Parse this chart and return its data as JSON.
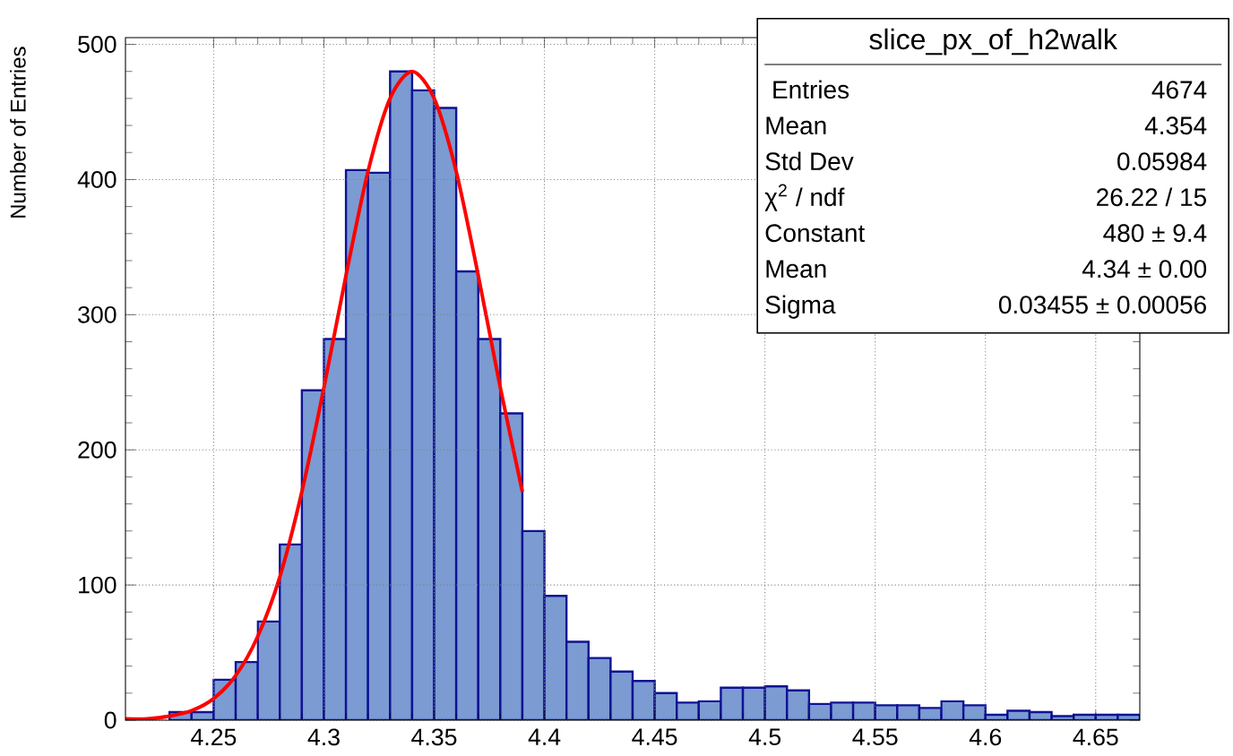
{
  "chart_data": {
    "type": "histogram",
    "ylabel": "Number of Entries",
    "bins": [
      4.21,
      4.22,
      4.23,
      4.24,
      4.25,
      4.26,
      4.27,
      4.28,
      4.29,
      4.3,
      4.31,
      4.32,
      4.33,
      4.34,
      4.35,
      4.36,
      4.37,
      4.38,
      4.39,
      4.4,
      4.41,
      4.42,
      4.43,
      4.44,
      4.45,
      4.46,
      4.47,
      4.48,
      4.49,
      4.5,
      4.51,
      4.52,
      4.53,
      4.54,
      4.55,
      4.56,
      4.57,
      4.58,
      4.59,
      4.6,
      4.61,
      4.62,
      4.63,
      4.64,
      4.65,
      4.66,
      4.67
    ],
    "values": [
      0,
      0,
      6,
      6,
      30,
      43,
      73,
      130,
      244,
      282,
      407,
      405,
      480,
      466,
      453,
      332,
      282,
      227,
      140,
      92,
      58,
      46,
      36,
      29,
      20,
      13,
      14,
      24,
      24,
      25,
      22,
      12,
      13,
      13,
      11,
      11,
      9,
      14,
      11,
      4,
      7,
      6,
      3,
      4,
      4,
      4
    ],
    "color": "#7b9bd2",
    "series": [
      {
        "type": "line",
        "color": "#ff0000",
        "x": [
          4.21,
          4.22,
          4.23,
          4.24,
          4.25,
          4.26,
          4.27,
          4.28,
          4.29,
          4.3,
          4.31,
          4.32,
          4.33,
          4.34,
          4.35,
          4.36,
          4.37,
          4.38,
          4.39
        ],
        "values": [
          1,
          1,
          3,
          7,
          16,
          33,
          62,
          106,
          169,
          246,
          329,
          406,
          460,
          480,
          460,
          406,
          329,
          246,
          169
        ]
      }
    ],
    "xlim": [
      4.21,
      4.67
    ],
    "ylim": [
      0,
      505
    ],
    "xticks": [
      4.25,
      4.3,
      4.35,
      4.4,
      4.45,
      4.5,
      4.55,
      4.6,
      4.65
    ],
    "yticks": [
      0,
      100,
      200,
      300,
      400,
      500
    ],
    "grid": true,
    "annotations": [
      "slice_px_of_h2walk",
      "Entries",
      "4674",
      "Mean",
      "4.354",
      "Std Dev",
      "0.05984",
      "χ$^{2}$ / ndf",
      "26.22 / 15",
      "Constant",
      "480 ± 9.4",
      "Mean",
      "4.34 ± 0.00",
      "Sigma",
      "0.03455 ± 0.00056"
    ]
  }
}
